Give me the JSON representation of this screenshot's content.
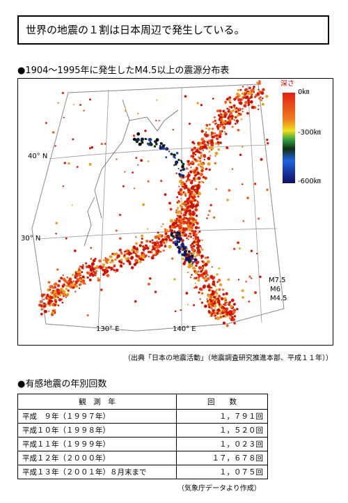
{
  "header": {
    "title": "世界の地震の１割は日本周辺で発生している。"
  },
  "map_section": {
    "heading": "●1904～1995年に発生したM4.5以上の震源分布表",
    "map": {
      "legend_title": "深さ",
      "depth_labels": [
        "0㎞",
        "-300㎞",
        "-600㎞"
      ],
      "lat_labels": [
        "40° N",
        "30° N"
      ],
      "lon_labels": [
        "130° E",
        "140° E"
      ],
      "magnitude_labels": [
        "M7.5",
        "M6",
        "M4.5"
      ]
    },
    "source": "（出典「日本の地震活動」（地震調査研究推進本部、平成１１年））"
  },
  "table_section": {
    "heading": "●有感地震の年別回数",
    "table": {
      "header": [
        "観　測　年",
        "回　　数"
      ],
      "rows": [
        [
          "平成　９年（１９９７年）",
          "１，７９１回"
        ],
        [
          "平成１０年（１９９８年）",
          "１，５２０回"
        ],
        [
          "平成１１年（１９９９年）",
          "１，０２３回"
        ],
        [
          "平成１２年（２０００年）",
          "１７，６７８回"
        ],
        [
          "平成１３年（２００１年）８月末まで",
          "１，０７５回"
        ]
      ]
    },
    "note": "（気象庁データより作成）"
  }
}
